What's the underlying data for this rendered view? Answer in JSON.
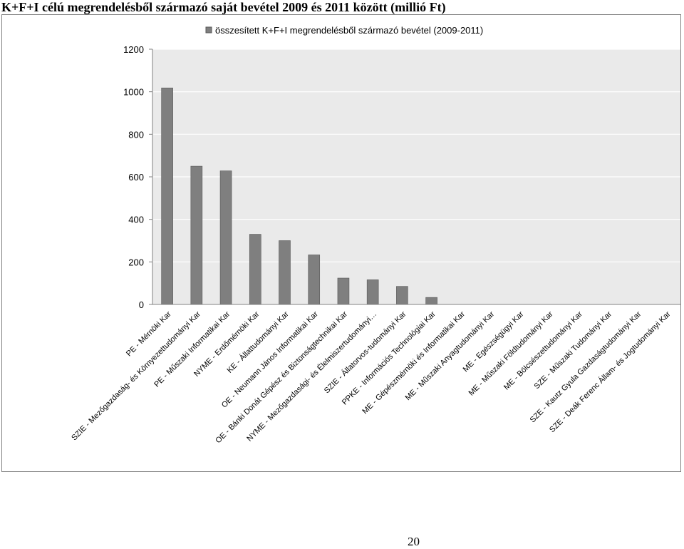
{
  "page": {
    "title": "K+F+I célú megrendelésből származó saját bevétel 2009 és 2011 között (millió Ft)",
    "page_number": "20"
  },
  "colors": {
    "bar": "#7f7f7f",
    "bar_stroke": "#595959",
    "plot_bg": "#eaeaea",
    "grid": "#ffffff"
  },
  "chart_data": {
    "type": "bar",
    "title": "",
    "xlabel": "",
    "ylabel": "",
    "ylim": [
      0,
      1200
    ],
    "yticks": [
      0,
      200,
      400,
      600,
      800,
      1000,
      1200
    ],
    "grid": true,
    "legend_position": "top",
    "categories": [
      "PE - Mérnöki Kar",
      "SZIE - Mezőgazdaság- és Környezettudományi Kar",
      "PE - Műszaki Informatikai Kar",
      "NYME - Erdőmérnöki Kar",
      "KE - Állattudományi Kar",
      "OE - Neumann János Informatikai Kar",
      "OE - Bánki Donát Gépész és Biztonságtechnikai Kar",
      "NYME - Mezőgazdasági- és Élelmiszertudományi…",
      "SZIE - Állatorvos-tudományi Kar",
      "PPKE - Információs Technológiai Kar",
      "ME - Gépészmérnöki és Informatikai Kar",
      "ME - Műszaki Anyagtudományi Kar",
      "ME - Egészségügyi Kar",
      "ME - Műszaki Földtudományi Kar",
      "ME - Bölcsészettudományi Kar",
      "SZE - Műszaki Tudományi Kar",
      "SZE - Kautz Gyula Gazdaságtudományi Kar",
      "SZE - Deák Ferenc Állam- és Jogtudományi Kar"
    ],
    "series": [
      {
        "name": "összesített K+F+I megrendelésből származó bevétel (2009-2011)",
        "values": [
          1018,
          650,
          628,
          330,
          300,
          233,
          124,
          116,
          85,
          33,
          0,
          0,
          0,
          0,
          0,
          0,
          0,
          0
        ]
      }
    ]
  }
}
